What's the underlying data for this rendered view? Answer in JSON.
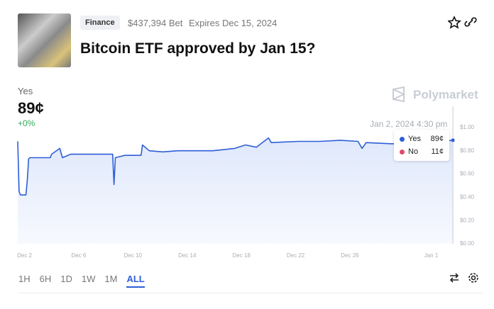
{
  "header": {
    "tag": "Finance",
    "volume": "$437,394 Bet",
    "expires": "Expires Dec 15, 2024",
    "title": "Bitcoin ETF approved by Jan 15?"
  },
  "brand": "Polymarket",
  "outcome": {
    "label": "Yes",
    "price": "89¢",
    "change": "+0%"
  },
  "chart_data": {
    "type": "line",
    "x": [
      1.5,
      1.6,
      1.7,
      2.1,
      2.2,
      2.3,
      2.4,
      3.9,
      4.0,
      4.6,
      4.8,
      5.4,
      6.5,
      8.0,
      8.5,
      8.6,
      8.7,
      9.4,
      10.6,
      10.7,
      11.2,
      12.2,
      13.3,
      14.9,
      15.9,
      17.5,
      18.3,
      19.1,
      20.0,
      20.2,
      22.2,
      23.8,
      25.3,
      26.6,
      26.9,
      27.2,
      29.0,
      30.6,
      32.7,
      33.6
    ],
    "series": [
      {
        "name": "Yes",
        "color": "#2f5ed6",
        "values": [
          0.88,
          0.45,
          0.42,
          0.42,
          0.54,
          0.73,
          0.74,
          0.74,
          0.77,
          0.82,
          0.74,
          0.77,
          0.77,
          0.77,
          0.77,
          0.51,
          0.74,
          0.76,
          0.76,
          0.85,
          0.8,
          0.79,
          0.8,
          0.8,
          0.8,
          0.82,
          0.85,
          0.83,
          0.91,
          0.87,
          0.88,
          0.88,
          0.89,
          0.88,
          0.82,
          0.87,
          0.86,
          0.86,
          0.88,
          0.89
        ]
      }
    ],
    "xlim": [
      1.5,
      33.7
    ],
    "xticks": [
      {
        "value": 2,
        "label": "Dec 2"
      },
      {
        "value": 6,
        "label": "Dec 6"
      },
      {
        "value": 10,
        "label": "Dec 10"
      },
      {
        "value": 14,
        "label": "Dec 14"
      },
      {
        "value": 18,
        "label": "Dec 18"
      },
      {
        "value": 22,
        "label": "Dec 22"
      },
      {
        "value": 26,
        "label": "Dec 26"
      },
      {
        "value": 32,
        "label": "Jan 1"
      }
    ],
    "ylim": [
      0,
      1.2
    ],
    "yticks": [
      {
        "value": 0,
        "label": "$0.00"
      },
      {
        "value": 0.2,
        "label": "$0.20"
      },
      {
        "value": 0.4,
        "label": "$0.40"
      },
      {
        "value": 0.6,
        "label": "$0.60"
      },
      {
        "value": 0.8,
        "label": "$0.80"
      },
      {
        "value": 1.0,
        "label": "$1.00"
      }
    ]
  },
  "tooltip": {
    "time": "Jan 2, 2024 4:30 pm",
    "no_label": "No",
    "yes_value": "89¢",
    "no_value": "11¢"
  },
  "ranges": [
    "1H",
    "6H",
    "1D",
    "1W",
    "1M",
    "ALL"
  ]
}
